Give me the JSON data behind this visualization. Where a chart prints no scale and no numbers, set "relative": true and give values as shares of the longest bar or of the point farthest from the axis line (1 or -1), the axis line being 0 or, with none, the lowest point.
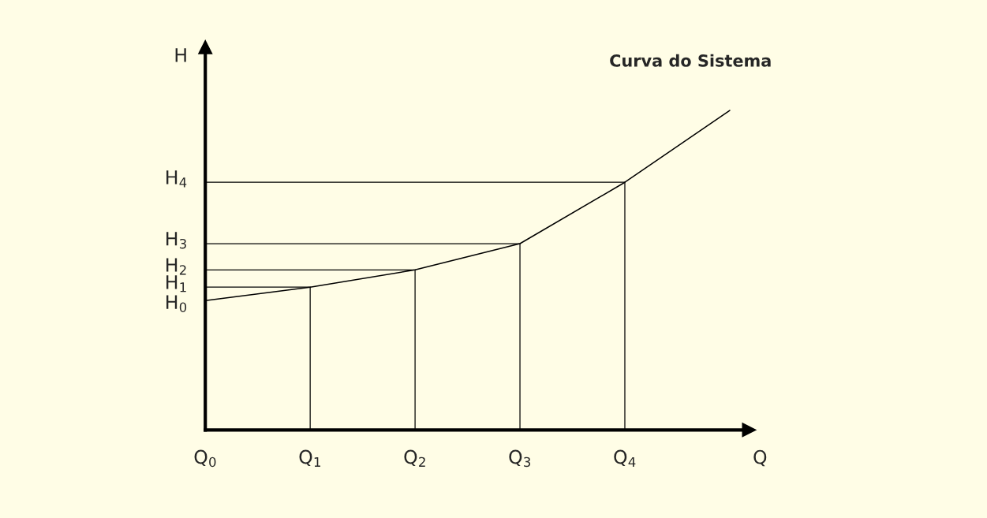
{
  "chart_data": {
    "type": "line",
    "relative": true,
    "xlabel": "Q",
    "ylabel": "H",
    "categories": [
      "Q$_{0}$",
      "Q$_{1}$",
      "Q$_{2}$",
      "Q$_{3}$",
      "Q$_{4}$",
      null
    ],
    "series": [
      {
        "color": "#000000",
        "values": [
          0.405,
          0.447,
          0.501,
          0.583,
          0.775,
          1.0
        ]
      }
    ],
    "ref_lines": [
      {
        "axis": "x",
        "value": "Q$_{1}$",
        "color": "#000000"
      },
      {
        "axis": "x",
        "value": "Q$_{2}$",
        "color": "#000000"
      },
      {
        "axis": "x",
        "value": "Q$_{3}$",
        "color": "#000000"
      },
      {
        "axis": "x",
        "value": "Q$_{4}$",
        "color": "#000000"
      },
      {
        "axis": "y",
        "value": 0.447,
        "color": "#000000"
      },
      {
        "axis": "y",
        "value": 0.501,
        "color": "#000000"
      },
      {
        "axis": "y",
        "value": 0.583,
        "color": "#000000"
      },
      {
        "axis": "y",
        "value": 0.775,
        "color": "#000000"
      }
    ],
    "annotations": [
      "Curva do Sistema",
      "H$_{0}$",
      "H$_{1}$",
      "H$_{2}$",
      "H$_{3}$",
      "H$_{4}$"
    ],
    "marker": "none",
    "line_style": "solid"
  }
}
